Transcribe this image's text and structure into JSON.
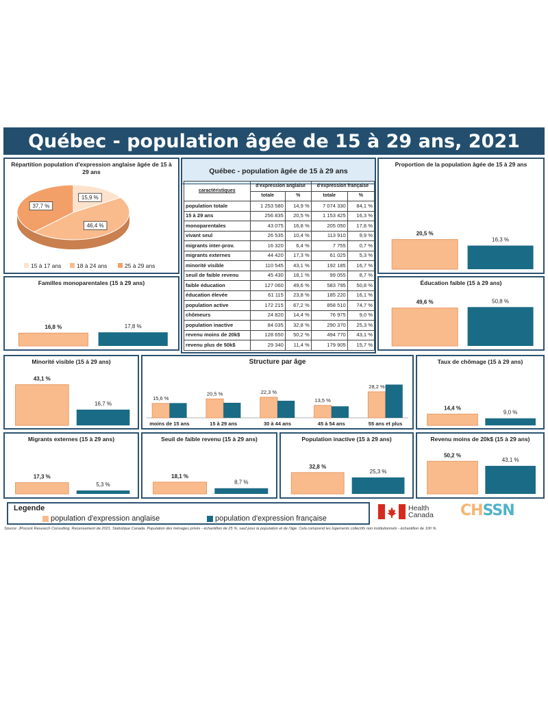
{
  "title": "Québec - population âgée de 15 à 29 ans, 2021",
  "colors": {
    "anglo": "#f9bb8c",
    "anglo_stroke": "#e89a66",
    "franco": "#1a6b85",
    "frame": "#2a5170",
    "banner": "#234e6e"
  },
  "pie": {
    "title": "Répartition population d'expression anglaise âgée de 15 à 29 ans",
    "chart_data": {
      "type": "pie",
      "labels": [
        "15 à 17 ans",
        "18 à 24 ans",
        "25 à 29 ans"
      ],
      "values": [
        15.9,
        46.4,
        37.7
      ],
      "value_labels": [
        "15,9 %",
        "46,4 %",
        "37,7 %"
      ],
      "colors": [
        "#fde2cc",
        "#f9bb8c",
        "#f3a068"
      ]
    }
  },
  "table": {
    "title": "Québec - population âgée de 15 à 29 ans",
    "char_header": "caractéristiques",
    "group_headers": [
      "d'expression anglaise",
      "d'expression française"
    ],
    "sub_headers": [
      "totale",
      "%",
      "totale",
      "%"
    ],
    "rows": [
      {
        "label": "population totale",
        "a_tot": "1 253 580",
        "a_pct": "14,9 %",
        "f_tot": "7 074 330",
        "f_pct": "84,1 %"
      },
      {
        "label": "15 à 29 ans",
        "a_tot": "256 835",
        "a_pct": "20,5 %",
        "f_tot": "1 153 425",
        "f_pct": "16,3 %"
      },
      {
        "label": "monoparentales",
        "a_tot": "43 075",
        "a_pct": "16,8 %",
        "f_tot": "205 050",
        "f_pct": "17,8 %"
      },
      {
        "label": "vivant seul",
        "a_tot": "26 535",
        "a_pct": "10,4 %",
        "f_tot": "113 910",
        "f_pct": "9,9 %"
      },
      {
        "label": "migrants inter-prov.",
        "a_tot": "16 320",
        "a_pct": "6,4 %",
        "f_tot": "7 755",
        "f_pct": "0,7 %"
      },
      {
        "label": "migrants externes",
        "a_tot": "44 420",
        "a_pct": "17,3 %",
        "f_tot": "61 025",
        "f_pct": "5,3 %"
      },
      {
        "label": "minorité visible",
        "a_tot": "110 545",
        "a_pct": "43,1 %",
        "f_tot": "192 185",
        "f_pct": "16,7 %"
      },
      {
        "label": "seuil de faible revenu",
        "a_tot": "45 430",
        "a_pct": "18,1 %",
        "f_tot": "99 055",
        "f_pct": "8,7 %"
      },
      {
        "label": "faible éducation",
        "a_tot": "127 060",
        "a_pct": "49,6 %",
        "f_tot": "583 795",
        "f_pct": "50,8 %"
      },
      {
        "label": "éducation élevée",
        "a_tot": "61 115",
        "a_pct": "23,8 %",
        "f_tot": "185 220",
        "f_pct": "16,1 %"
      },
      {
        "label": "population active",
        "a_tot": "172 215",
        "a_pct": "67,2 %",
        "f_tot": "858 510",
        "f_pct": "74,7 %"
      },
      {
        "label": "chômeurs",
        "a_tot": "24 820",
        "a_pct": "14,4 %",
        "f_tot": "76 975",
        "f_pct": "9,0 %"
      },
      {
        "label": "population inactive",
        "a_tot": "84 035",
        "a_pct": "32,8 %",
        "f_tot": "290 370",
        "f_pct": "25,3 %"
      },
      {
        "label": "revenu moins de 20k$",
        "a_tot": "128 650",
        "a_pct": "50,2 %",
        "f_tot": "494 770",
        "f_pct": "43,1 %"
      },
      {
        "label": "revenu plus de 50k$",
        "a_tot": "29 340",
        "a_pct": "11,4 %",
        "f_tot": "179 905",
        "f_pct": "15,7 %"
      }
    ]
  },
  "chart_data": [
    {
      "id": "proportion",
      "type": "bar",
      "title": "Proportion de la population âgée de 15 à 29 ans",
      "values": [
        20.5,
        16.3
      ],
      "value_labels": [
        "20,5 %",
        "16,3 %"
      ],
      "ylim": [
        0,
        60
      ]
    },
    {
      "id": "familles",
      "type": "bar",
      "title": "Familles monoparentales (15 à 29 ans)",
      "values": [
        16.8,
        17.8
      ],
      "value_labels": [
        "16,8 %",
        "17,8 %"
      ],
      "ylim": [
        0,
        60
      ]
    },
    {
      "id": "education",
      "type": "bar",
      "title": "Éducation faible (15 à 29 ans)",
      "values": [
        49.6,
        50.8
      ],
      "value_labels": [
        "49,6 %",
        "50,8 %"
      ],
      "ylim": [
        0,
        60
      ]
    },
    {
      "id": "minorite",
      "type": "bar",
      "title": "Minorité visible (15 à 29 ans)",
      "values": [
        43.1,
        16.7
      ],
      "value_labels": [
        "43,1 %",
        "16,7 %"
      ],
      "ylim": [
        0,
        50
      ]
    },
    {
      "id": "structure",
      "type": "bar",
      "title": "Structure par âge",
      "categories": [
        "moins de 15 ans",
        "15 à 29 ans",
        "30 à 44 ans",
        "45 à 54 ans",
        "55 ans et plus"
      ],
      "series": [
        {
          "name": "population d'expression anglaise",
          "values": [
            15.6,
            20.5,
            22.3,
            13.5,
            28.2
          ],
          "value_labels": [
            "15,6 %",
            "20,5 %",
            "22,3 %",
            "13,5 %",
            "28,2 %"
          ]
        },
        {
          "name": "population d'expression française",
          "values": [
            16.0,
            16.3,
            18.5,
            12.5,
            36.0
          ]
        }
      ],
      "ylim": [
        0,
        40
      ]
    },
    {
      "id": "chomage",
      "type": "bar",
      "title": "Taux de chômage (15 à 29 ans)",
      "values": [
        14.4,
        9.0
      ],
      "value_labels": [
        "14,4 %",
        "9,0 %"
      ],
      "ylim": [
        0,
        60
      ]
    },
    {
      "id": "migrants",
      "type": "bar",
      "title": "Migrants externes (15 à 29 ans)",
      "values": [
        17.3,
        5.3
      ],
      "value_labels": [
        "17,3 %",
        "5,3 %"
      ],
      "ylim": [
        0,
        60
      ]
    },
    {
      "id": "seuil",
      "type": "bar",
      "title": "Seuil de faible revenu (15 à 29 ans)",
      "values": [
        18.1,
        8.7
      ],
      "value_labels": [
        "18,1 %",
        "8,7 %"
      ],
      "ylim": [
        0,
        60
      ]
    },
    {
      "id": "inactive",
      "type": "bar",
      "title": "Population inactive (15 à 29 ans)",
      "values": [
        32.8,
        25.3
      ],
      "value_labels": [
        "32,8 %",
        "25,3 %"
      ],
      "ylim": [
        0,
        60
      ]
    },
    {
      "id": "revenu",
      "type": "bar",
      "title": "Revenu moins de 20k$ (15 à 29 ans)",
      "values": [
        50.2,
        43.1
      ],
      "value_labels": [
        "50,2 %",
        "43,1 %"
      ],
      "ylim": [
        0,
        60
      ]
    }
  ],
  "legend": {
    "title": "Legende",
    "anglo": "population d'expression anglaise",
    "franco": "population d'expression française"
  },
  "logos": {
    "health_canada": "Health Canada",
    "chssn": "CHSSN"
  },
  "source": "Source: JPocock Research Consulting. Recensement de 2021. Statistique Canada. Population des ménages privés - échantillon de 25 %, sauf pour la population et de l'âge. Cela comprend les logements collectifs non institutionnels - échantillon de 100 %."
}
